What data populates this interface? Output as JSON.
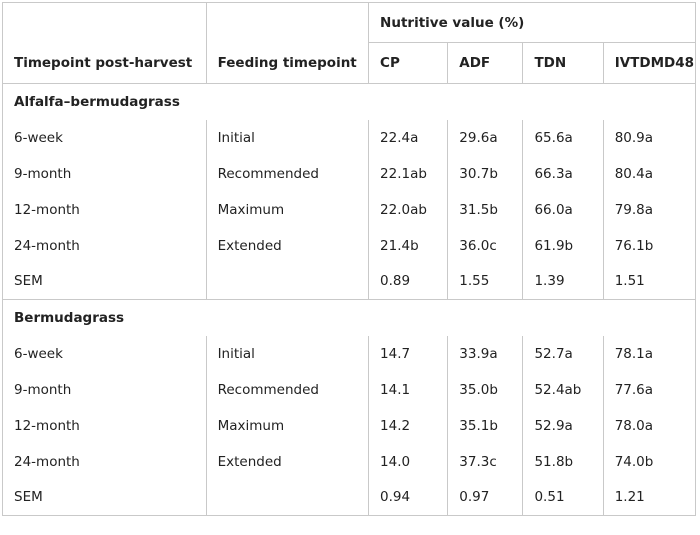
{
  "header": {
    "timepoint_post_harvest": "Timepoint post-harvest",
    "feeding_timepoint": "Feeding timepoint",
    "nutritive_value": "Nutritive value (%)",
    "columns": [
      "CP",
      "ADF",
      "TDN",
      "IVTDMD48"
    ]
  },
  "groups": [
    {
      "name": "Alfalfa–bermudagrass",
      "rows": [
        {
          "timepoint": "6-week",
          "feeding": "Initial",
          "cp": "22.4a",
          "adf": "29.6a",
          "tdn": "65.6a",
          "ivtdmd": "80.9a"
        },
        {
          "timepoint": "9-month",
          "feeding": "Recommended",
          "cp": "22.1ab",
          "adf": "30.7b",
          "tdn": "66.3a",
          "ivtdmd": "80.4a"
        },
        {
          "timepoint": "12-month",
          "feeding": "Maximum",
          "cp": "22.0ab",
          "adf": "31.5b",
          "tdn": "66.0a",
          "ivtdmd": "79.8a"
        },
        {
          "timepoint": "24-month",
          "feeding": "Extended",
          "cp": "21.4b",
          "adf": "36.0c",
          "tdn": "61.9b",
          "ivtdmd": "76.1b"
        },
        {
          "timepoint": "SEM",
          "feeding": "",
          "cp": "0.89",
          "adf": "1.55",
          "tdn": "1.39",
          "ivtdmd": "1.51"
        }
      ]
    },
    {
      "name": "Bermudagrass",
      "rows": [
        {
          "timepoint": "6-week",
          "feeding": "Initial",
          "cp": "14.7",
          "adf": "33.9a",
          "tdn": "52.7a",
          "ivtdmd": "78.1a"
        },
        {
          "timepoint": "9-month",
          "feeding": "Recommended",
          "cp": "14.1",
          "adf": "35.0b",
          "tdn": "52.4ab",
          "ivtdmd": "77.6a"
        },
        {
          "timepoint": "12-month",
          "feeding": "Maximum",
          "cp": "14.2",
          "adf": "35.1b",
          "tdn": "52.9a",
          "ivtdmd": "78.0a"
        },
        {
          "timepoint": "24-month",
          "feeding": "Extended",
          "cp": "14.0",
          "adf": "37.3c",
          "tdn": "51.8b",
          "ivtdmd": "74.0b"
        },
        {
          "timepoint": "SEM",
          "feeding": "",
          "cp": "0.94",
          "adf": "0.97",
          "tdn": "0.51",
          "ivtdmd": "1.21"
        }
      ]
    }
  ]
}
